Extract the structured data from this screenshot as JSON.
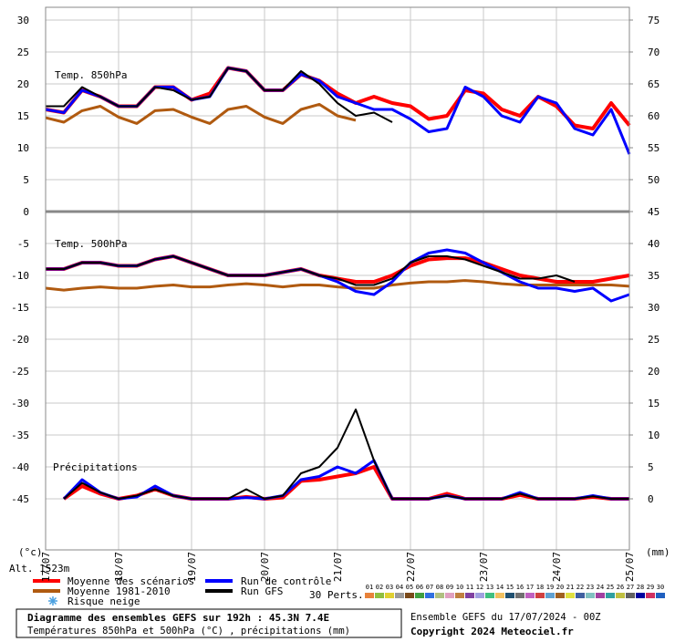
{
  "chart_data": {
    "type": "line",
    "title": "Diagramme des ensembles GEFS sur 192h : 45.3N 7.4E",
    "subtitle": "Températures 850hPa et 500hPa (°C) , précipitations (mm)",
    "run_info": "Ensemble GEFS du 17/07/2024 - 00Z",
    "copyright": "Copyright 2024 Meteociel.fr",
    "altitude": "Alt. 1523m",
    "y_label": "(°c)",
    "y2_label": "(mm)",
    "panel_labels": [
      "Temp. 850hPa",
      "Temp. 500hPa",
      "Précipitations"
    ],
    "snow_label": "Risque neige",
    "perts_label": "30 Perts.",
    "perts": [
      "01",
      "02",
      "03",
      "04",
      "05",
      "06",
      "07",
      "08",
      "09",
      "10",
      "11",
      "12",
      "13",
      "14",
      "15",
      "16",
      "17",
      "18",
      "19",
      "20",
      "21",
      "22",
      "23",
      "24",
      "25",
      "26",
      "27",
      "28",
      "29",
      "30"
    ],
    "perts_colors": [
      "#e8823a",
      "#8fbf3f",
      "#e0d030",
      "#9a9a9a",
      "#7a4a1a",
      "#40a040",
      "#3070e0",
      "#b0c080",
      "#e0a0c0",
      "#c08040",
      "#8040a0",
      "#a0a0e0",
      "#40c080",
      "#f0c060",
      "#205070",
      "#707070",
      "#c060c0",
      "#d04040",
      "#60a0d0",
      "#a06020",
      "#e0e040",
      "#4060a0",
      "#80c0c0",
      "#a040a0",
      "#30a0a0",
      "#c0c040",
      "#606060",
      "#0000a0",
      "#d03060",
      "#2060c0"
    ],
    "x": [
      0,
      6,
      12,
      18,
      24,
      30,
      36,
      42,
      48,
      54,
      60,
      66,
      72,
      78,
      84,
      90,
      96,
      102,
      108,
      114,
      120,
      126,
      132,
      138,
      144,
      150,
      156,
      162,
      168,
      174,
      180,
      186,
      192
    ],
    "xlim": [
      0,
      192
    ],
    "xticks": [
      {
        "value": 0,
        "label": "17/07"
      },
      {
        "value": 24,
        "label": "18/07"
      },
      {
        "value": 48,
        "label": "19/07"
      },
      {
        "value": 72,
        "label": "20/07"
      },
      {
        "value": 96,
        "label": "21/07"
      },
      {
        "value": 120,
        "label": "22/07"
      },
      {
        "value": 144,
        "label": "23/07"
      },
      {
        "value": 168,
        "label": "24/07"
      },
      {
        "value": 192,
        "label": "25/07"
      }
    ],
    "ylim": [
      -53,
      32
    ],
    "yticks": [
      30,
      25,
      20,
      15,
      10,
      5,
      0,
      -5,
      -10,
      -15,
      -20,
      -25,
      -30,
      -35,
      -40,
      -45
    ],
    "y2lim": [
      -8,
      77
    ],
    "y2ticks": [
      75,
      70,
      65,
      60,
      55,
      50,
      45,
      40,
      35,
      30,
      25,
      20,
      15,
      10,
      5,
      0
    ],
    "grid": true,
    "series": [
      {
        "name": "Moyenne des scénarios",
        "color": "#ff0000",
        "width": 4,
        "values": [
          16,
          15.5,
          19,
          18,
          16.5,
          16.5,
          19.5,
          19.5,
          17.5,
          18.5,
          22.5,
          22,
          19,
          19,
          21.5,
          20.5,
          18.5,
          17,
          18,
          17,
          16.5,
          14.5,
          15,
          19,
          18.5,
          16,
          15,
          18,
          16.5,
          13.5,
          13,
          17,
          13.5
        ]
      },
      {
        "name": "Moyenne 1981-2010",
        "color": "#b05a10",
        "width": 3,
        "values": [
          14.7,
          14,
          15.8,
          16.5,
          14.8,
          13.8,
          15.8,
          16,
          14.8,
          13.8,
          16,
          16.5,
          14.8,
          13.8,
          16,
          16.8,
          15,
          14.3,
          null,
          null,
          null,
          null,
          null,
          null,
          null,
          null,
          null,
          null,
          null,
          null,
          null,
          null,
          null
        ]
      },
      {
        "name": "Run de contrôle",
        "color": "#0000ff",
        "width": 3,
        "values": [
          16,
          15.5,
          19,
          18,
          16.5,
          16.5,
          19.5,
          19.5,
          17.5,
          18,
          22.5,
          22,
          19,
          19,
          21.5,
          20.5,
          18,
          17,
          16,
          16,
          14.5,
          12.5,
          13,
          19.5,
          18,
          15,
          14,
          18,
          17,
          13,
          12,
          16,
          9
        ]
      },
      {
        "name": "Run GFS",
        "color": "#000000",
        "width": 2,
        "values": [
          16.5,
          16.5,
          19.5,
          18,
          16.5,
          16.5,
          19.5,
          19,
          17.5,
          18,
          22.5,
          22,
          19,
          19,
          22,
          20,
          17,
          15,
          15.5,
          14,
          null,
          null,
          null,
          null,
          null,
          null,
          null,
          null,
          null,
          null,
          null,
          null,
          null
        ]
      },
      {
        "name": "Moyenne des scénarios",
        "color": "#ff0000",
        "width": 4,
        "values": [
          -9,
          -9,
          -8,
          -8,
          -8.5,
          -8.5,
          -7.5,
          -7,
          -8,
          -9,
          -10,
          -10,
          -10,
          -9.5,
          -9,
          -10,
          -10.5,
          -11,
          -11,
          -10,
          -8.5,
          -7.5,
          -7.3,
          -7.3,
          -8,
          -9,
          -10,
          -10.5,
          -11,
          -11,
          -11,
          -10.5,
          -10
        ]
      },
      {
        "name": "Moyenne 1981-2010",
        "color": "#b05a10",
        "width": 3,
        "values": [
          -12,
          -12.3,
          -12,
          -11.8,
          -12,
          -12,
          -11.7,
          -11.5,
          -11.8,
          -11.8,
          -11.5,
          -11.3,
          -11.5,
          -11.8,
          -11.5,
          -11.5,
          -11.8,
          -12,
          -12,
          -11.5,
          -11.2,
          -11,
          -11,
          -10.8,
          -11,
          -11.3,
          -11.5,
          -11.5,
          -11.5,
          -11.5,
          -11.5,
          -11.5,
          -11.7
        ]
      },
      {
        "name": "Run de contrôle",
        "color": "#0000ff",
        "width": 3,
        "values": [
          -9,
          -9,
          -8,
          -8,
          -8.5,
          -8.5,
          -7.5,
          -7,
          -8,
          -9,
          -10,
          -10,
          -10,
          -9.5,
          -9,
          -10,
          -11,
          -12.5,
          -13,
          -11,
          -8,
          -6.5,
          -6,
          -6.5,
          -8,
          -9.5,
          -11,
          -12,
          -12,
          -12.5,
          -12,
          -14,
          -13
        ]
      },
      {
        "name": "Run GFS",
        "color": "#000000",
        "width": 2,
        "values": [
          -9,
          -9,
          -8,
          -8,
          -8.5,
          -8.5,
          -7.5,
          -7,
          -8,
          -9,
          -10,
          -10,
          -10,
          -9.5,
          -9,
          -10,
          -10.5,
          -11.5,
          -11.5,
          -10.5,
          -8,
          -7,
          -7,
          -7.5,
          -8.5,
          -9.5,
          -10.5,
          -10.5,
          -10,
          -11,
          null,
          null,
          null
        ]
      },
      {
        "name": "Moyenne des scénarios",
        "color": "#ff0000",
        "width": 4,
        "axis": "y2",
        "values": [
          null,
          0,
          2,
          0.8,
          0,
          0.5,
          1.5,
          0.5,
          0,
          0,
          0,
          0.3,
          0,
          0.2,
          2.8,
          3,
          3.5,
          4,
          5,
          0,
          0,
          0,
          0.8,
          0,
          0,
          0,
          0.6,
          0,
          0,
          0,
          0.3,
          0,
          0
        ]
      },
      {
        "name": "Run de contrôle",
        "color": "#0000ff",
        "width": 3,
        "axis": "y2",
        "values": [
          null,
          0,
          3,
          1,
          0,
          0.3,
          2,
          0.5,
          0,
          0,
          0,
          0.2,
          0,
          0.5,
          3,
          3.5,
          5,
          4,
          6,
          0,
          0,
          0,
          0.5,
          0,
          0,
          0,
          1,
          0,
          0,
          0,
          0.5,
          0,
          0
        ]
      },
      {
        "name": "Run GFS",
        "color": "#000000",
        "width": 2,
        "axis": "y2",
        "values": [
          null,
          0,
          2.5,
          1,
          0,
          0.5,
          1.5,
          0.5,
          0,
          0,
          0,
          1.5,
          0,
          0.5,
          4,
          5,
          8,
          14,
          6,
          0,
          0,
          0,
          0.5,
          0,
          0,
          0,
          0.8,
          0,
          0,
          0,
          0.4,
          0,
          0
        ]
      }
    ]
  }
}
